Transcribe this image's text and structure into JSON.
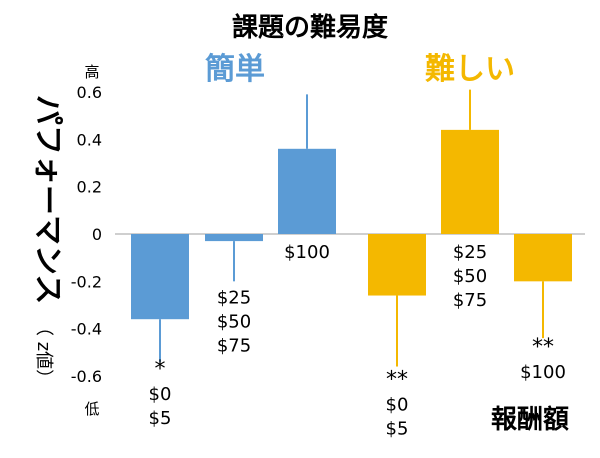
{
  "chart_data": {
    "type": "bar",
    "title": "課題の難易度",
    "groups": [
      {
        "name": "簡単",
        "color": "#5b9bd5"
      },
      {
        "name": "難しい",
        "color": "#f4b800"
      }
    ],
    "ylabel_main": "パフォーマンス",
    "ylabel_sub": "（ z値）",
    "xlabel": "報酬額",
    "ylim": [
      -0.6,
      0.6
    ],
    "yticks": [
      "0.6",
      "0.4",
      "0.2",
      "0",
      "-0.2",
      "-0.4",
      "-0.6"
    ],
    "y_high_label": "高",
    "y_low_label": "低",
    "bars": [
      {
        "group": "簡単",
        "value": -0.36,
        "err": 0.18,
        "labels": [
          "*",
          "$0",
          "$5"
        ]
      },
      {
        "group": "簡単",
        "value": -0.03,
        "err": 0.17,
        "labels": [
          "$25",
          "$50",
          "$75"
        ]
      },
      {
        "group": "簡単",
        "value": 0.36,
        "err": 0.23,
        "labels": [
          "$100"
        ]
      },
      {
        "group": "難しい",
        "value": -0.26,
        "err": 0.3,
        "labels": [
          "**",
          "$0",
          "$5"
        ]
      },
      {
        "group": "難しい",
        "value": 0.44,
        "err": 0.17,
        "labels": [
          "$25",
          "$50",
          "$75"
        ]
      },
      {
        "group": "難しい",
        "value": -0.2,
        "err": 0.24,
        "labels": [
          "**",
          "$100"
        ]
      }
    ]
  }
}
